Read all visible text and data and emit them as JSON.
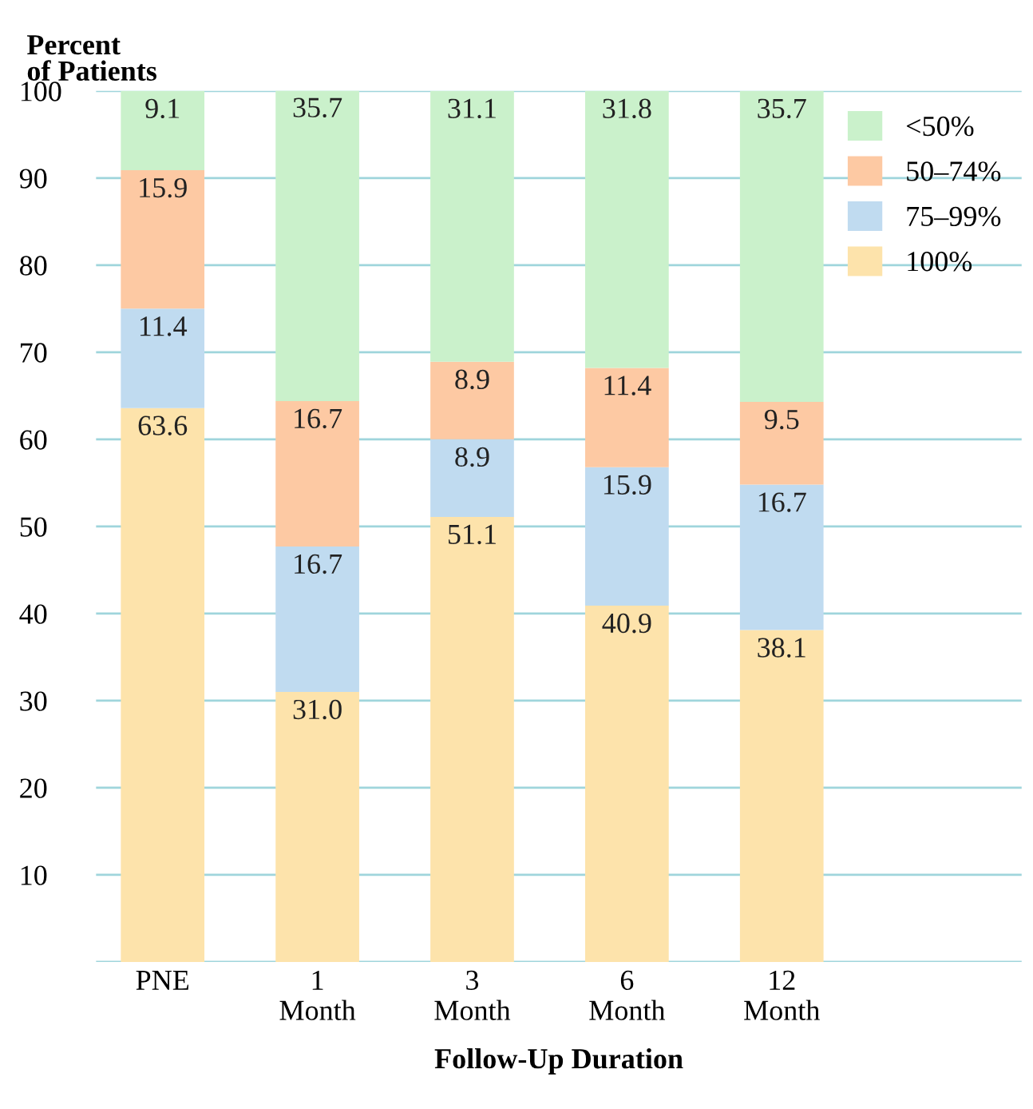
{
  "chart_data": {
    "type": "bar",
    "stacked": true,
    "ylabel": "Percent\nof Patients",
    "xlabel": "Follow-Up Duration",
    "categories": [
      "PNE",
      "1\nMonth",
      "3\nMonth",
      "6\nMonth",
      "12\nMonth"
    ],
    "series": [
      {
        "name": "100%",
        "color": "#fde3ab",
        "values": [
          63.6,
          31.0,
          51.1,
          40.9,
          38.1
        ],
        "value_labels": [
          "63.6",
          "31.0",
          "51.1",
          "40.9",
          "38.1"
        ]
      },
      {
        "name": "75–99%",
        "color": "#c0dbf0",
        "values": [
          11.4,
          16.7,
          8.9,
          15.9,
          16.7
        ],
        "value_labels": [
          "11.4",
          "16.7",
          "8.9",
          "15.9",
          "16.7"
        ]
      },
      {
        "name": "50–74%",
        "color": "#fdc9a3",
        "values": [
          15.9,
          16.7,
          8.9,
          11.4,
          9.5
        ],
        "value_labels": [
          "15.9",
          "16.7",
          "8.9",
          "11.4",
          "9.5"
        ]
      },
      {
        "name": "<50%",
        "color": "#caf1cb",
        "values": [
          9.1,
          35.7,
          31.1,
          31.8,
          35.7
        ],
        "value_labels": [
          "9.1",
          "35.7",
          "31.1",
          "31.8",
          "35.7"
        ]
      }
    ],
    "ylim": [
      0,
      100
    ],
    "yticks": [
      {
        "value": 0,
        "label": null
      },
      10,
      20,
      30,
      40,
      50,
      60,
      70,
      80,
      90,
      100
    ],
    "grid": "y",
    "legend": "top right"
  }
}
